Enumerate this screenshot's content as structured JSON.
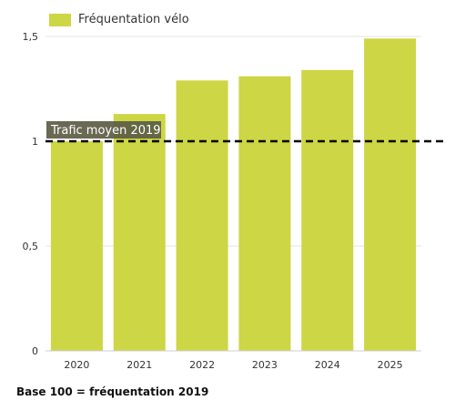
{
  "chart_data": {
    "type": "bar",
    "categories": [
      "2020",
      "2021",
      "2022",
      "2023",
      "2024",
      "2025"
    ],
    "series": [
      {
        "name": "Fréquentation vélo",
        "values": [
          1.0,
          1.13,
          1.29,
          1.31,
          1.34,
          1.49
        ]
      }
    ],
    "ylim": [
      0,
      1.5
    ],
    "yticks": [
      0,
      0.5,
      1,
      1.5
    ],
    "ytick_labels": [
      "0",
      "0,5",
      "1",
      "1,5"
    ],
    "reference_line": {
      "value": 1,
      "label": "Trafic moyen 2019",
      "style": "dashed"
    },
    "grid": "horizontal",
    "legend_position": "top-left",
    "colors": {
      "bar": "#cdd644",
      "reference": "#000000",
      "label_bg": "#5c5c45"
    }
  },
  "footnote": "Base 100 = fréquentation 2019"
}
